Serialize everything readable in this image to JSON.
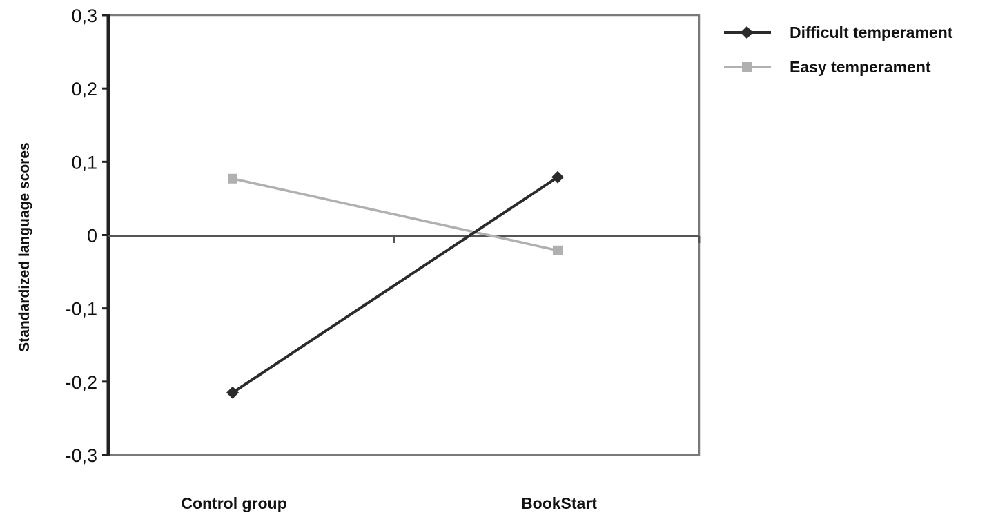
{
  "chart_data": {
    "type": "line",
    "title": "",
    "xlabel": "",
    "ylabel": "Standardized language scores",
    "categories": [
      "Control group",
      "BookStart"
    ],
    "y_ticks": [
      "0,3",
      "0,2",
      "0,1",
      "0",
      "-0,1",
      "-0,2",
      "-0,3"
    ],
    "ylim": [
      -0.3,
      0.3
    ],
    "grid": false,
    "legend_position": "top-right",
    "series": [
      {
        "name": "Difficult temperament",
        "values": [
          -0.215,
          0.079
        ],
        "color": "#2b2b2b",
        "marker": "diamond"
      },
      {
        "name": "Easy temperament",
        "values": [
          0.077,
          -0.021
        ],
        "color": "#b0b0b0",
        "marker": "square"
      }
    ]
  }
}
